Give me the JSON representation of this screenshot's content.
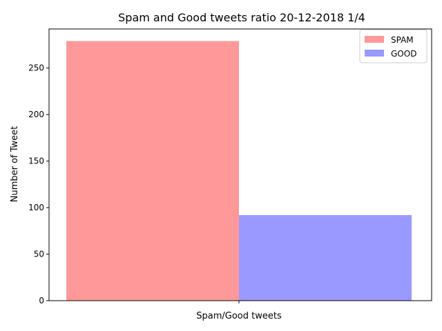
{
  "chart_data": {
    "type": "bar",
    "title": "Spam and Good tweets ratio 20-12-2018 1/4",
    "xlabel": "Spam/Good tweets",
    "ylabel": "Number of Tweet",
    "ylim": [
      0,
      292
    ],
    "yticks": [
      0,
      50,
      100,
      150,
      200,
      250
    ],
    "categories": [
      ""
    ],
    "grid": false,
    "legend_position": "top-right",
    "series": [
      {
        "name": "SPAM",
        "values": [
          279
        ],
        "color": "#ff9999"
      },
      {
        "name": "GOOD",
        "values": [
          92
        ],
        "color": "#9999ff"
      }
    ]
  }
}
